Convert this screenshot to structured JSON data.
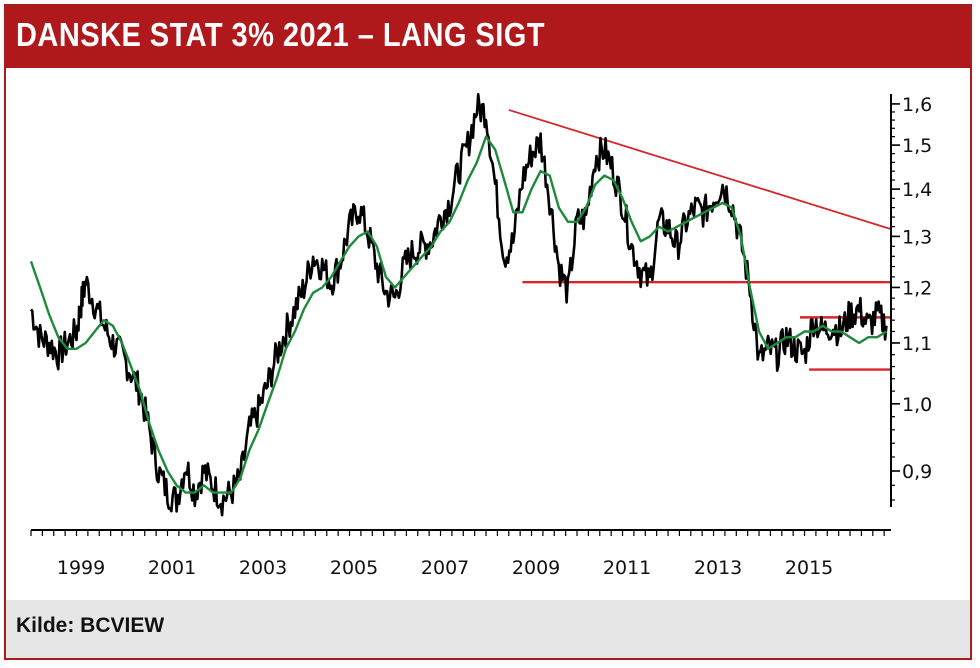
{
  "header": {
    "title": "DANSKE STAT 3% 2021 – LANG SIGT"
  },
  "footer": {
    "source": "Kilde: BCVIEW"
  },
  "colors": {
    "header_bg": "#b0191c",
    "price": "#000000",
    "moving_average": "#1e8a3c",
    "trendlines": "#d7262b",
    "footer_bg": "#e6e6e6"
  },
  "chart_data": {
    "type": "line",
    "title": "DANSKE STAT 3% 2021 – LANG SIGT",
    "xlabel": "",
    "ylabel": "",
    "x_tick_labels": [
      "1999",
      "2001",
      "2003",
      "2005",
      "2007",
      "2009",
      "2011",
      "2013",
      "2015"
    ],
    "y_tick_labels": [
      "1,6",
      "1,5",
      "1,4",
      "1,3",
      "1,2",
      "1,1",
      "1,0",
      "0,9"
    ],
    "y_ticks": [
      1.6,
      1.5,
      1.4,
      1.3,
      1.2,
      1.1,
      1.0,
      0.9
    ],
    "y_scale": "log",
    "xlim": [
      1997.9,
      2016.8
    ],
    "ylim": [
      0.84,
      1.62
    ],
    "grid": false,
    "y_axis_position": "right",
    "series": [
      {
        "style": "price",
        "x": [
          1997.9,
          1998.1,
          1998.3,
          1998.5,
          1998.7,
          1998.9,
          1999.0,
          1999.1,
          1999.3,
          1999.5,
          1999.7,
          1999.9,
          2000.1,
          2000.3,
          2000.5,
          2000.7,
          2000.9,
          2001.1,
          2001.3,
          2001.5,
          2001.7,
          2001.9,
          2002.1,
          2002.3,
          2002.5,
          2002.7,
          2002.9,
          2003.1,
          2003.3,
          2003.5,
          2003.7,
          2003.9,
          2004.1,
          2004.3,
          2004.5,
          2004.7,
          2004.9,
          2005.1,
          2005.3,
          2005.5,
          2005.7,
          2005.9,
          2006.1,
          2006.3,
          2006.5,
          2006.7,
          2006.9,
          2007.1,
          2007.3,
          2007.5,
          2007.7,
          2007.9,
          2008.1,
          2008.3,
          2008.5,
          2008.7,
          2008.9,
          2009.1,
          2009.3,
          2009.5,
          2009.7,
          2009.9,
          2010.1,
          2010.3,
          2010.5,
          2010.7,
          2010.9,
          2011.1,
          2011.3,
          2011.5,
          2011.7,
          2011.9,
          2012.1,
          2012.3,
          2012.5,
          2012.7,
          2012.9,
          2013.1,
          2013.3,
          2013.5,
          2013.7,
          2013.9,
          2014.1,
          2014.3,
          2014.5,
          2014.7,
          2014.9,
          2015.1,
          2015.3,
          2015.5,
          2015.7,
          2015.9,
          2016.1,
          2016.3,
          2016.5,
          2016.7
        ],
        "values": [
          1.16,
          1.11,
          1.1,
          1.08,
          1.1,
          1.12,
          1.17,
          1.21,
          1.17,
          1.13,
          1.1,
          1.08,
          1.05,
          1.02,
          0.96,
          0.9,
          0.87,
          0.86,
          0.91,
          0.87,
          0.9,
          0.88,
          0.86,
          0.87,
          0.89,
          0.96,
          0.99,
          1.03,
          1.08,
          1.12,
          1.16,
          1.2,
          1.26,
          1.24,
          1.21,
          1.25,
          1.32,
          1.36,
          1.31,
          1.24,
          1.19,
          1.18,
          1.24,
          1.27,
          1.28,
          1.29,
          1.34,
          1.37,
          1.44,
          1.5,
          1.59,
          1.58,
          1.41,
          1.26,
          1.29,
          1.42,
          1.48,
          1.51,
          1.38,
          1.24,
          1.19,
          1.33,
          1.34,
          1.47,
          1.49,
          1.44,
          1.37,
          1.28,
          1.23,
          1.21,
          1.33,
          1.32,
          1.28,
          1.33,
          1.36,
          1.35,
          1.38,
          1.41,
          1.37,
          1.29,
          1.2,
          1.07,
          1.09,
          1.08,
          1.11,
          1.09,
          1.08,
          1.14,
          1.12,
          1.13,
          1.12,
          1.15,
          1.16,
          1.13,
          1.15,
          1.13
        ]
      },
      {
        "style": "moving_average",
        "x": [
          1997.9,
          1998.1,
          1998.3,
          1998.5,
          1998.7,
          1998.9,
          1999.1,
          1999.3,
          1999.5,
          1999.7,
          1999.9,
          2000.1,
          2000.3,
          2000.5,
          2000.7,
          2000.9,
          2001.1,
          2001.3,
          2001.5,
          2001.7,
          2001.9,
          2002.1,
          2002.3,
          2002.5,
          2002.7,
          2002.9,
          2003.1,
          2003.3,
          2003.5,
          2003.7,
          2003.9,
          2004.1,
          2004.3,
          2004.5,
          2004.7,
          2004.9,
          2005.1,
          2005.3,
          2005.5,
          2005.7,
          2005.9,
          2006.1,
          2006.3,
          2006.5,
          2006.7,
          2006.9,
          2007.1,
          2007.3,
          2007.5,
          2007.7,
          2007.9,
          2008.1,
          2008.3,
          2008.5,
          2008.7,
          2008.9,
          2009.1,
          2009.3,
          2009.5,
          2009.7,
          2009.9,
          2010.1,
          2010.3,
          2010.5,
          2010.7,
          2010.9,
          2011.1,
          2011.3,
          2011.5,
          2011.7,
          2011.9,
          2012.1,
          2012.3,
          2012.5,
          2012.7,
          2012.9,
          2013.1,
          2013.3,
          2013.5,
          2013.7,
          2013.9,
          2014.1,
          2014.3,
          2014.5,
          2014.7,
          2014.9,
          2015.1,
          2015.3,
          2015.5,
          2015.7,
          2015.9,
          2016.1,
          2016.3,
          2016.5,
          2016.7
        ],
        "values": [
          1.25,
          1.2,
          1.15,
          1.11,
          1.09,
          1.09,
          1.1,
          1.12,
          1.14,
          1.13,
          1.1,
          1.06,
          1.02,
          0.97,
          0.93,
          0.9,
          0.88,
          0.87,
          0.87,
          0.88,
          0.87,
          0.87,
          0.87,
          0.89,
          0.93,
          0.96,
          1.0,
          1.04,
          1.09,
          1.12,
          1.16,
          1.19,
          1.2,
          1.22,
          1.25,
          1.28,
          1.3,
          1.31,
          1.28,
          1.22,
          1.2,
          1.22,
          1.24,
          1.26,
          1.28,
          1.31,
          1.33,
          1.37,
          1.42,
          1.46,
          1.52,
          1.49,
          1.42,
          1.35,
          1.35,
          1.4,
          1.44,
          1.43,
          1.36,
          1.33,
          1.33,
          1.36,
          1.41,
          1.43,
          1.42,
          1.38,
          1.33,
          1.29,
          1.3,
          1.32,
          1.31,
          1.32,
          1.33,
          1.34,
          1.35,
          1.36,
          1.37,
          1.36,
          1.3,
          1.2,
          1.12,
          1.09,
          1.1,
          1.11,
          1.11,
          1.12,
          1.12,
          1.13,
          1.12,
          1.12,
          1.11,
          1.1,
          1.11,
          1.11,
          1.12
        ]
      }
    ],
    "trendlines": [
      {
        "style": "resistance",
        "x": [
          2008.4,
          2016.8
        ],
        "y": [
          1.585,
          1.315
        ]
      },
      {
        "style": "support",
        "x": [
          2008.7,
          2016.8
        ],
        "y": [
          1.21,
          1.21
        ]
      },
      {
        "style": "support",
        "x": [
          2014.8,
          2016.8
        ],
        "y": [
          1.145,
          1.145
        ]
      },
      {
        "style": "support",
        "x": [
          2015.0,
          2016.8
        ],
        "y": [
          1.055,
          1.055
        ]
      }
    ]
  }
}
